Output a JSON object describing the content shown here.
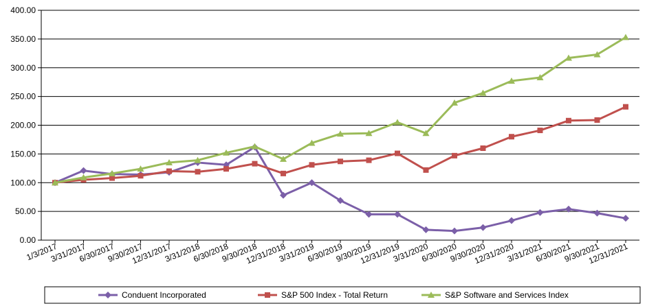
{
  "chart_data": {
    "type": "line",
    "categories": [
      "1/3/2017",
      "3/31/2017",
      "6/30/2017",
      "9/30/2017",
      "12/31/2017",
      "3/31/2018",
      "6/30/2018",
      "9/30/2018",
      "12/31/2018",
      "3/31/2019",
      "6/30/2019",
      "9/30/2019",
      "12/31/2019",
      "3/31/2020",
      "6/30/2020",
      "9/30/2020",
      "12/31/2020",
      "3/31/2021",
      "6/30/2021",
      "9/30/2021",
      "12/31/2021"
    ],
    "y_ticks": [
      "0.00",
      "50.00",
      "100.00",
      "150.00",
      "200.00",
      "250.00",
      "300.00",
      "350.00",
      "400.00"
    ],
    "ylim": [
      0,
      400
    ],
    "grid": "horizontal",
    "legend_position": "bottom",
    "series": [
      {
        "name": "Conduent Incorporated",
        "color": "#7b5fa8",
        "marker": "diamond",
        "values": [
          100,
          121,
          115,
          114,
          118,
          135,
          131,
          162,
          78,
          100,
          69,
          45,
          45,
          18,
          16,
          22,
          34,
          48,
          54,
          47,
          38
        ]
      },
      {
        "name": "S&P 500 Index - Total Return",
        "color": "#c0504d",
        "marker": "square",
        "values": [
          100,
          105,
          108,
          112,
          120,
          119,
          124,
          133,
          116,
          131,
          137,
          139,
          151,
          122,
          147,
          160,
          180,
          191,
          208,
          209,
          232
        ]
      },
      {
        "name": "S&P Software and Services Index",
        "color": "#9bbb59",
        "marker": "triangle",
        "values": [
          100,
          109,
          116,
          124,
          135,
          139,
          152,
          163,
          141,
          169,
          185,
          186,
          205,
          186,
          239,
          256,
          277,
          283,
          317,
          323,
          353
        ]
      }
    ]
  }
}
